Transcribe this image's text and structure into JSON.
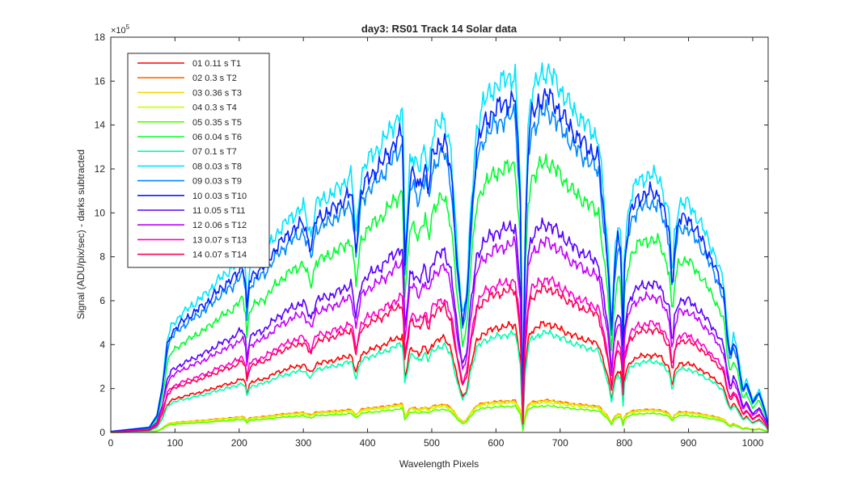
{
  "chart_data": {
    "type": "line",
    "title": "day3: RS01  Track 14 Solar data",
    "xlabel": "Wavelength Pixels",
    "ylabel": "Signal (ADU/pix/sec) - darks subtracted",
    "exponent_label": "×10",
    "exponent_value": "5",
    "xlim": [
      0,
      1024
    ],
    "ylim": [
      0,
      18
    ],
    "xticks": [
      0,
      100,
      200,
      300,
      400,
      500,
      600,
      700,
      800,
      900,
      1000
    ],
    "yticks": [
      0,
      2,
      4,
      6,
      8,
      10,
      12,
      14,
      16,
      18
    ],
    "legend_position": "top-left",
    "profile": {
      "x": [
        0,
        60,
        72,
        80,
        88,
        95,
        110,
        130,
        150,
        170,
        190,
        205,
        210,
        212,
        216,
        220,
        240,
        260,
        280,
        300,
        312,
        320,
        340,
        360,
        375,
        382,
        385,
        390,
        400,
        420,
        440,
        455,
        458,
        462,
        466,
        470,
        480,
        490,
        495,
        500,
        510,
        520,
        530,
        540,
        548,
        555,
        560,
        570,
        580,
        600,
        620,
        630,
        638,
        642,
        645,
        650,
        655,
        660,
        670,
        680,
        690,
        700,
        720,
        740,
        760,
        775,
        780,
        785,
        790,
        795,
        798,
        800,
        805,
        810,
        820,
        840,
        855,
        870,
        875,
        878,
        885,
        900,
        920,
        940,
        955,
        960,
        965,
        970,
        975,
        985,
        990,
        1000,
        1010,
        1020,
        1024
      ],
      "y": [
        0.003,
        0.015,
        0.05,
        0.13,
        0.26,
        0.3,
        0.33,
        0.36,
        0.39,
        0.43,
        0.46,
        0.5,
        0.45,
        0.36,
        0.45,
        0.47,
        0.5,
        0.56,
        0.6,
        0.63,
        0.55,
        0.64,
        0.66,
        0.69,
        0.72,
        0.55,
        0.62,
        0.72,
        0.76,
        0.8,
        0.86,
        0.9,
        0.5,
        0.62,
        0.76,
        0.78,
        0.73,
        0.8,
        0.72,
        0.82,
        0.86,
        0.88,
        0.78,
        0.5,
        0.33,
        0.4,
        0.6,
        0.85,
        0.92,
        0.97,
        0.99,
        1.0,
        0.7,
        0.06,
        0.55,
        0.85,
        0.95,
        0.96,
        1.0,
        1.01,
        0.99,
        0.96,
        0.9,
        0.86,
        0.82,
        0.5,
        0.3,
        0.5,
        0.58,
        0.55,
        0.26,
        0.5,
        0.6,
        0.66,
        0.7,
        0.72,
        0.71,
        0.6,
        0.42,
        0.55,
        0.64,
        0.64,
        0.58,
        0.5,
        0.42,
        0.3,
        0.22,
        0.27,
        0.24,
        0.12,
        0.15,
        0.09,
        0.12,
        0.06,
        0.02
      ]
    },
    "series": [
      {
        "name": "01 0.11 s T1",
        "peak": 4.9,
        "color": "#ff0000"
      },
      {
        "name": "02 0.3 s T2",
        "peak": 1.45,
        "color": "#ff6a00"
      },
      {
        "name": "03 0.36 s T3",
        "peak": 1.42,
        "color": "#ffd400"
      },
      {
        "name": "04 0.3 s T4",
        "peak": 1.35,
        "color": "#c8ff00"
      },
      {
        "name": "05 0.35 s T5",
        "peak": 1.2,
        "color": "#55ff00"
      },
      {
        "name": "06 0.04 s T6",
        "peak": 12.2,
        "color": "#00ff2e"
      },
      {
        "name": "07 0.1 s T7",
        "peak": 4.5,
        "color": "#00ffaa"
      },
      {
        "name": "08 0.03 s T8",
        "peak": 16.3,
        "color": "#00e5ff"
      },
      {
        "name": "09 0.03 s T9",
        "peak": 14.5,
        "color": "#0088ff"
      },
      {
        "name": "10 0.03 s T10",
        "peak": 15.2,
        "color": "#0022ff"
      },
      {
        "name": "11 0.05 s T11",
        "peak": 9.4,
        "color": "#5a00ff"
      },
      {
        "name": "12 0.06 s T12",
        "peak": 8.6,
        "color": "#c000ff"
      },
      {
        "name": "13 0.07 s T13",
        "peak": 6.9,
        "color": "#ff00c8"
      },
      {
        "name": "14 0.07 s T14",
        "peak": 6.5,
        "color": "#ff0050"
      }
    ]
  }
}
